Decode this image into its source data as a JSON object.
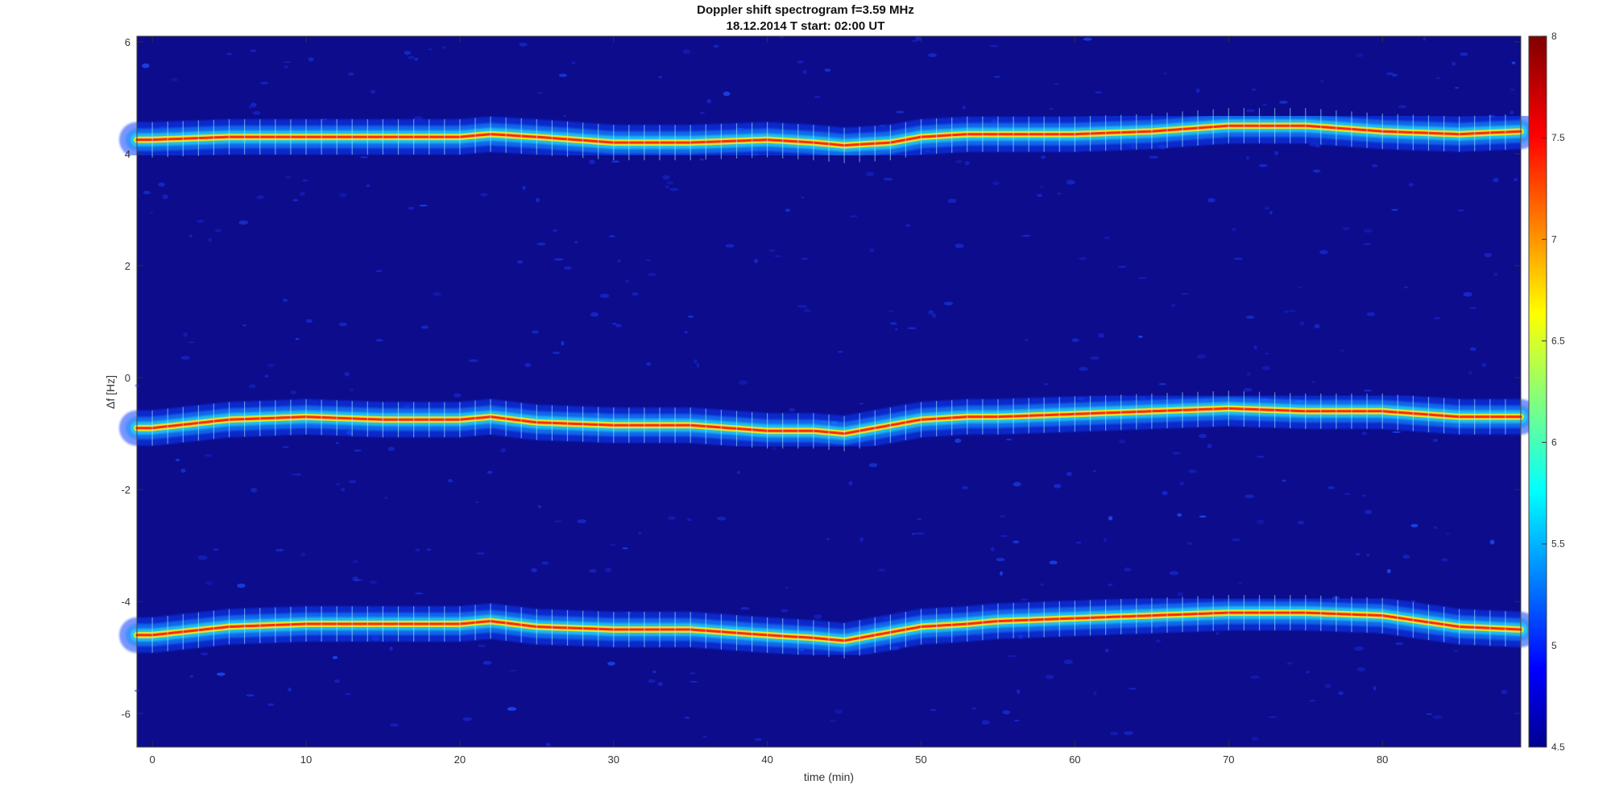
{
  "chart_data": {
    "type": "heatmap",
    "title": "Doppler shift spectrogram f=3.59 MHz",
    "subtitle": "18.12.2014   T start: 02:00 UT",
    "xlabel": "time (min)",
    "ylabel": "Δf [Hz]",
    "xlim": [
      -1,
      89
    ],
    "ylim": [
      -6.6,
      6.1
    ],
    "xticks": [
      0,
      10,
      20,
      30,
      40,
      50,
      60,
      70,
      80
    ],
    "yticks": [
      -6,
      -4,
      -2,
      0,
      2,
      4,
      6
    ],
    "colorbar": {
      "colormap": "jet",
      "range": [
        4.5,
        8
      ],
      "ticks": [
        4.5,
        5,
        5.5,
        6,
        6.5,
        7,
        7.5,
        8
      ]
    },
    "series": [
      {
        "t": [
          0,
          5,
          10,
          15,
          20,
          22,
          25,
          30,
          35,
          40,
          43,
          45,
          48,
          50,
          53,
          55,
          60,
          65,
          70,
          75,
          80,
          85,
          89
        ],
        "df": [
          4.25,
          4.3,
          4.3,
          4.3,
          4.3,
          4.35,
          4.3,
          4.2,
          4.2,
          4.25,
          4.2,
          4.15,
          4.2,
          4.3,
          4.35,
          4.35,
          4.35,
          4.4,
          4.5,
          4.5,
          4.4,
          4.35,
          4.4
        ]
      },
      {
        "t": [
          0,
          5,
          10,
          15,
          20,
          22,
          25,
          30,
          35,
          40,
          43,
          45,
          48,
          50,
          53,
          55,
          60,
          65,
          70,
          75,
          80,
          85,
          89
        ],
        "df": [
          -0.9,
          -0.75,
          -0.7,
          -0.75,
          -0.75,
          -0.7,
          -0.8,
          -0.85,
          -0.85,
          -0.95,
          -0.95,
          -1.0,
          -0.85,
          -0.75,
          -0.7,
          -0.7,
          -0.65,
          -0.6,
          -0.55,
          -0.6,
          -0.6,
          -0.7,
          -0.7
        ]
      },
      {
        "t": [
          0,
          5,
          10,
          15,
          20,
          22,
          25,
          30,
          35,
          40,
          43,
          45,
          48,
          50,
          53,
          55,
          60,
          65,
          70,
          75,
          80,
          85,
          89
        ],
        "df": [
          -4.6,
          -4.45,
          -4.4,
          -4.4,
          -4.4,
          -4.35,
          -4.45,
          -4.5,
          -4.5,
          -4.6,
          -4.65,
          -4.7,
          -4.55,
          -4.45,
          -4.4,
          -4.35,
          -4.3,
          -4.25,
          -4.2,
          -4.2,
          -4.25,
          -4.45,
          -4.5
        ]
      }
    ]
  }
}
